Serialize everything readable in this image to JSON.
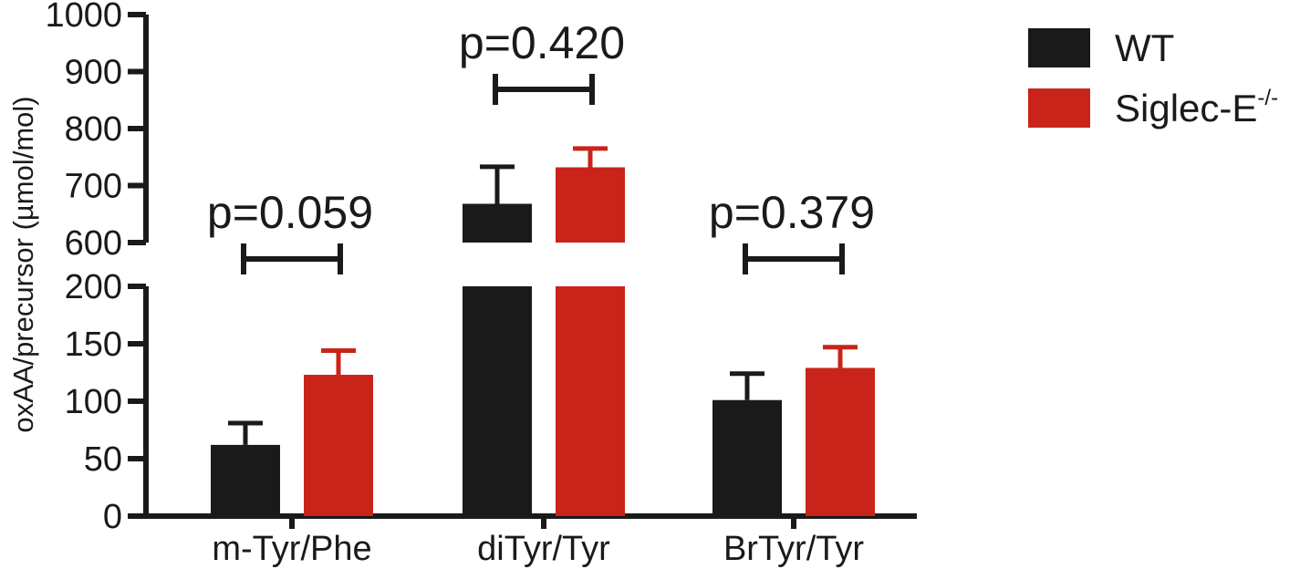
{
  "chart_data": {
    "type": "bar",
    "ylabel": "oxAA/precursor (µmol/mol)",
    "axis_break": {
      "lower": [
        0,
        200
      ],
      "upper": [
        600,
        1000
      ]
    },
    "lower_ticks": [
      0,
      50,
      100,
      150,
      200
    ],
    "upper_ticks": [
      600,
      700,
      800,
      900,
      1000
    ],
    "categories": [
      "m-Tyr/Phe",
      "diTyr/Tyr",
      "BrTyr/Tyr"
    ],
    "series": [
      {
        "name": "WT",
        "color": "#1a1a1a",
        "values": [
          62,
          668,
          101
        ],
        "errors": [
          19,
          65,
          23
        ]
      },
      {
        "name": "Siglec-E",
        "name_superscript": "-/-",
        "color": "#c8241a",
        "values": [
          123,
          732,
          129
        ],
        "errors": [
          21,
          33,
          18
        ]
      }
    ],
    "annotations": [
      {
        "category": "m-Tyr/Phe",
        "text": "p=0.059"
      },
      {
        "category": "diTyr/Tyr",
        "text": "p=0.420"
      },
      {
        "category": "BrTyr/Tyr",
        "text": "p=0.379"
      }
    ],
    "legend": "top-right",
    "grid": false
  }
}
